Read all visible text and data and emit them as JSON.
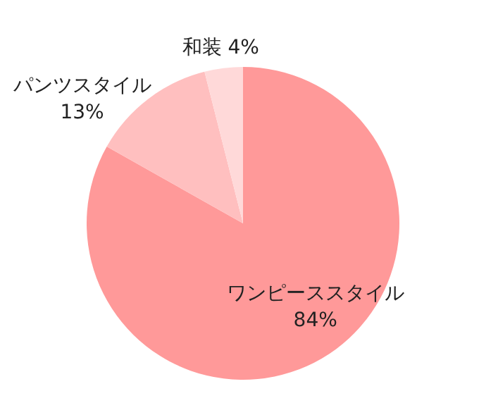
{
  "chart_data": {
    "type": "pie",
    "categories": [
      "ワンピーススタイル",
      "パンツスタイル",
      "和装"
    ],
    "values": [
      84,
      13,
      4
    ],
    "colors": [
      "#ff9999",
      "#ffbfbf",
      "#ffd9d9"
    ],
    "value_labels": [
      "84%",
      "13%",
      "4%"
    ]
  }
}
